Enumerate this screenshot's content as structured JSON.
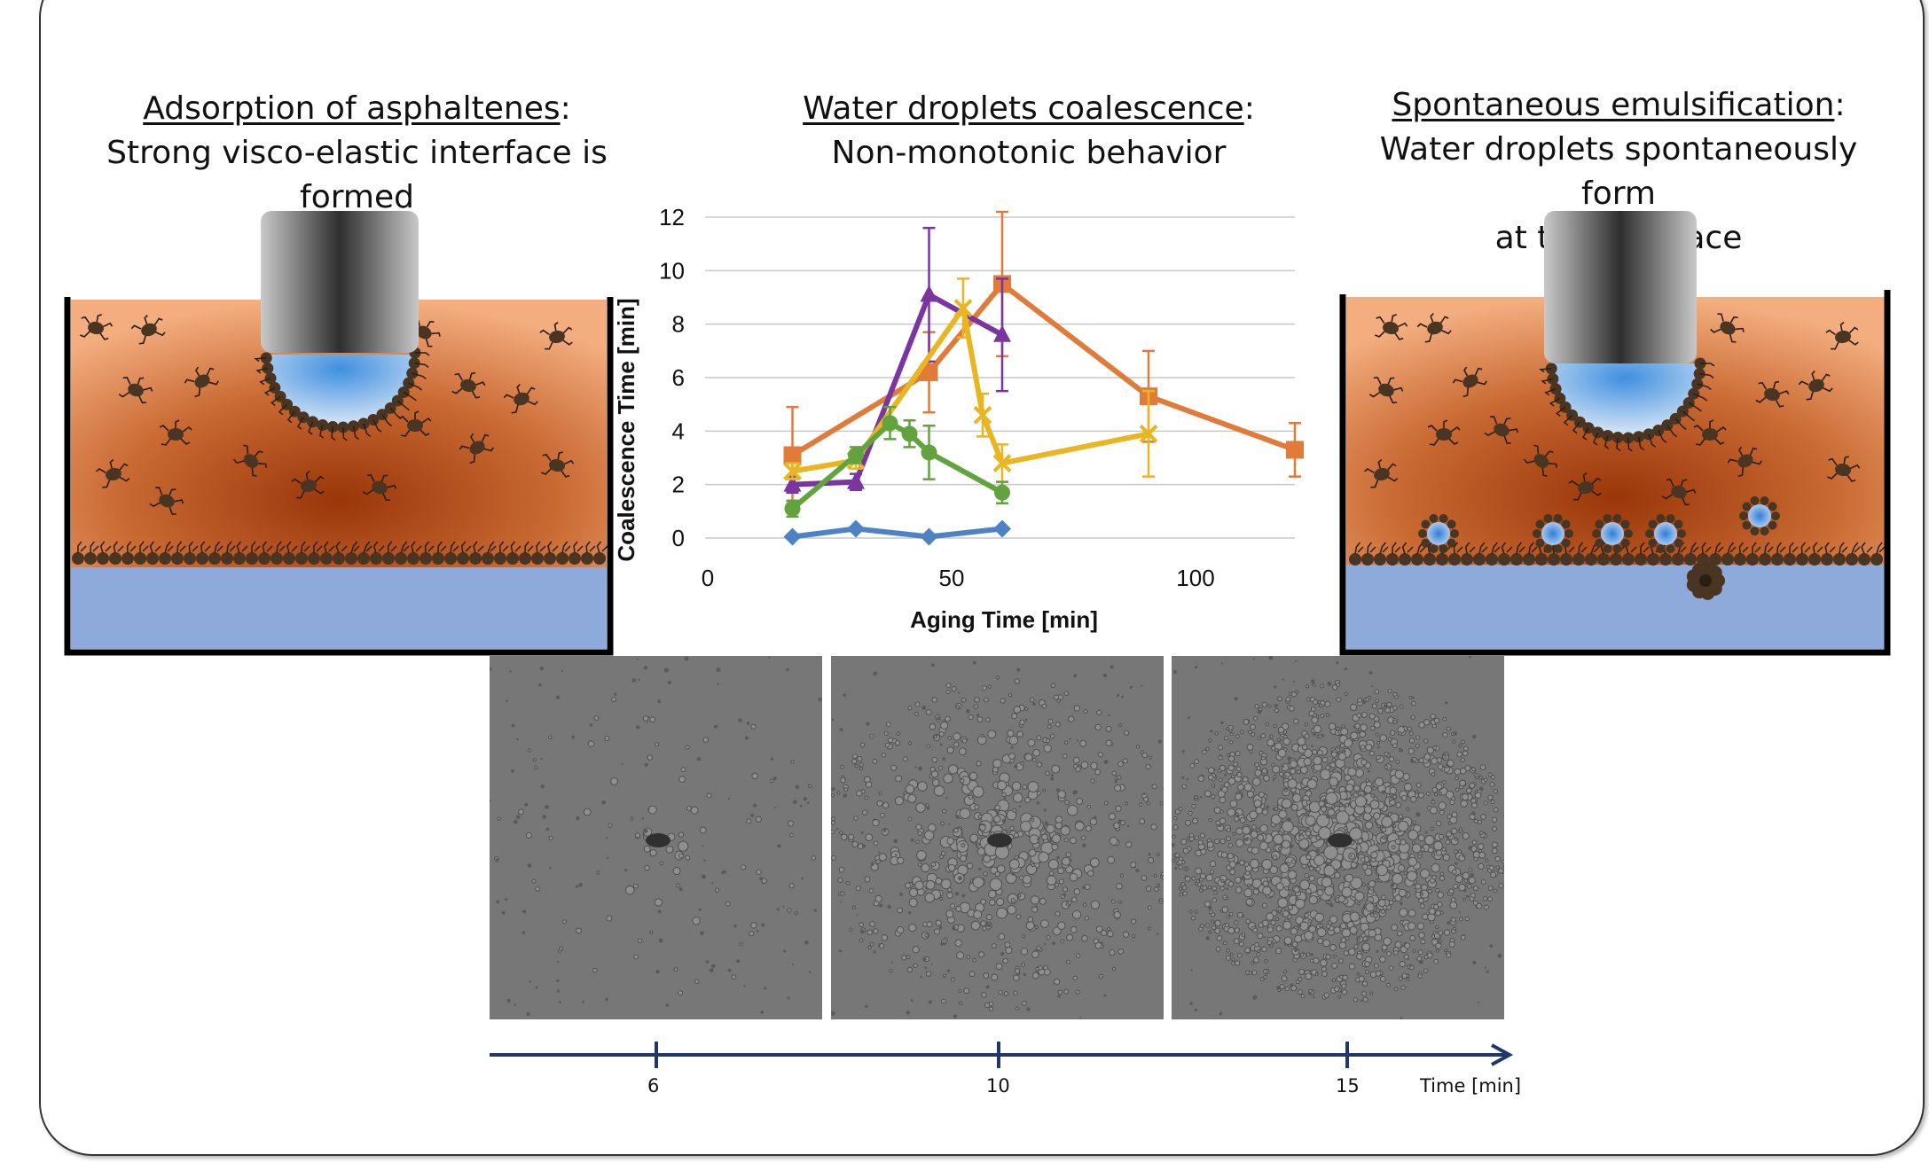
{
  "left_panel": {
    "title": "Adsorption of asphaltenes",
    "title_suffix": ":",
    "subtitle": "Strong visco-elastic interface is formed"
  },
  "center_panel": {
    "title": "Water droplets coalescence",
    "title_suffix": ":",
    "subtitle": "Non-monotonic behavior"
  },
  "right_panel": {
    "title": "Spontaneous emulsification",
    "title_suffix": ":",
    "subtitle_line1": "Water droplets spontaneously form",
    "subtitle_line2": "at the interface"
  },
  "colors": {
    "oil_dark": "#a4400f",
    "oil_light": "#f0a574",
    "water": "#8eaadb",
    "asphaltene": "#4a3422",
    "series_blue": "#4d82c4",
    "series_orange": "#e07b3a",
    "series_purple": "#7b35a0",
    "series_yellow": "#e9b520",
    "series_green": "#62a33f",
    "timeline": "#1f3868"
  },
  "chart_data": {
    "type": "line",
    "xlabel": "Aging Time [min]",
    "ylabel": "Coalescence Time [min]",
    "xlim": [
      0,
      120
    ],
    "ylim": [
      0,
      12
    ],
    "xticks": [
      "0",
      "50",
      "100"
    ],
    "yticks": [
      "0",
      "2",
      "4",
      "6",
      "8",
      "10",
      "12"
    ],
    "grid": "horizontal",
    "legend": "none",
    "series": [
      {
        "color": "#4d82c4",
        "marker": "diamond",
        "x": [
          17,
          30,
          45,
          60
        ],
        "y": [
          0.05,
          0.35,
          0.05,
          0.35
        ],
        "err": [
          0,
          0,
          0,
          0
        ]
      },
      {
        "color": "#e07b3a",
        "marker": "square",
        "x": [
          17,
          45,
          60,
          90,
          120
        ],
        "y": [
          3.1,
          6.2,
          9.5,
          5.3,
          3.3
        ],
        "err": [
          1.8,
          1.5,
          2.7,
          1.7,
          1.0
        ]
      },
      {
        "color": "#7b35a0",
        "marker": "triangle",
        "x": [
          17,
          30,
          45,
          60
        ],
        "y": [
          2.0,
          2.1,
          9.1,
          7.6
        ],
        "err": [
          0.3,
          0.3,
          2.5,
          2.1
        ]
      },
      {
        "color": "#e9b520",
        "marker": "x",
        "x": [
          17,
          30,
          52,
          56,
          60,
          90
        ],
        "y": [
          2.5,
          2.9,
          8.6,
          4.6,
          2.8,
          3.9
        ],
        "err": [
          0.3,
          0.3,
          1.1,
          0.8,
          0.7,
          1.6
        ]
      },
      {
        "color": "#62a33f",
        "marker": "circle",
        "x": [
          17,
          30,
          37,
          41,
          45,
          60
        ],
        "y": [
          1.1,
          3.1,
          4.3,
          3.9,
          3.2,
          1.7
        ],
        "err": [
          0.3,
          0.3,
          0.6,
          0.5,
          1.0,
          0.4
        ]
      }
    ]
  },
  "photos": [
    {
      "name": "frame-6min"
    },
    {
      "name": "frame-10min"
    },
    {
      "name": "frame-15min"
    }
  ],
  "timeline": {
    "ticks": [
      "6",
      "10",
      "15"
    ],
    "label": "Time [min]"
  }
}
